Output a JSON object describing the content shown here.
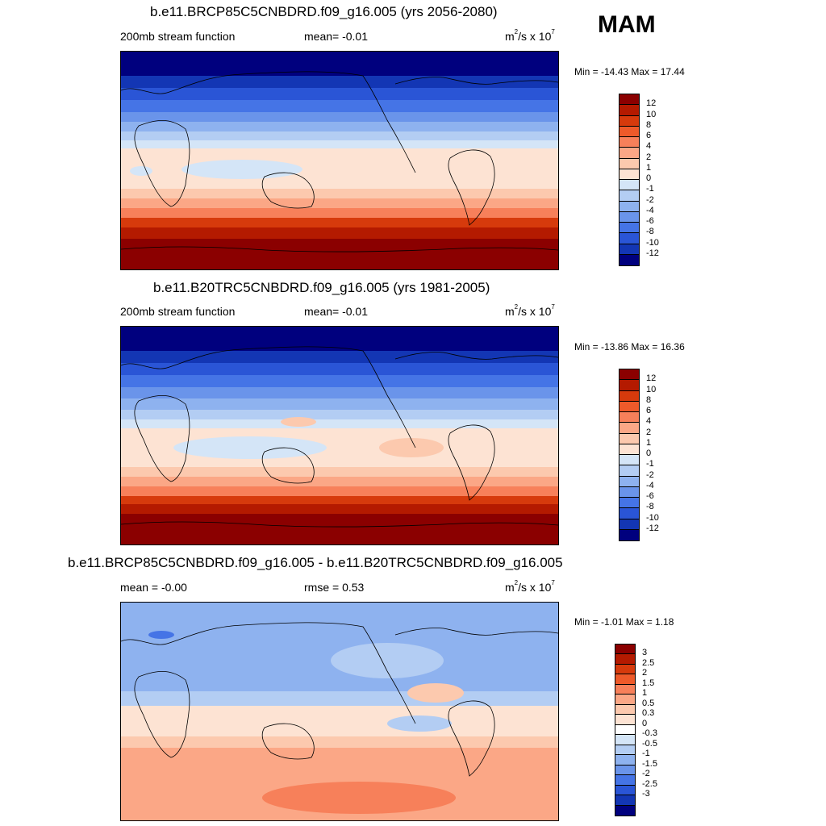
{
  "season": "MAM",
  "panels": [
    {
      "title": "b.e11.BRCP85C5CNBDRD.f09_g16.005 (yrs 2056-2080)",
      "left_label": "200mb stream function",
      "center_label": "mean=  -0.01",
      "units": "m²/s x 10⁷",
      "units_base": "m",
      "units_mid": "/s x 10",
      "units_exp2": "2",
      "units_exp7": "7",
      "minmax": "Min = -14.43 Max =  17.44",
      "colorbar_labels": [
        "12",
        "10",
        "8",
        "6",
        "4",
        "2",
        "1",
        "0",
        "-1",
        "-2",
        "-4",
        "-6",
        "-8",
        "-10",
        "-12"
      ],
      "colors": [
        "#8b0000",
        "#b41a00",
        "#d63a0c",
        "#ee5a2a",
        "#f7805a",
        "#fba786",
        "#fcc9ae",
        "#fde3d3",
        "#d4e5f7",
        "#b3cdf3",
        "#8eb2ef",
        "#6a94ea",
        "#4574e6",
        "#2a55d6",
        "#1336b4",
        "#00007e"
      ]
    },
    {
      "title": "b.e11.B20TRC5CNBDRD.f09_g16.005 (yrs 1981-2005)",
      "left_label": "200mb stream function",
      "center_label": "mean=  -0.01",
      "units": "m²/s x 10⁷",
      "units_base": "m",
      "units_mid": "/s x 10",
      "units_exp2": "2",
      "units_exp7": "7",
      "minmax": "Min = -13.86 Max =  16.36",
      "colorbar_labels": [
        "12",
        "10",
        "8",
        "6",
        "4",
        "2",
        "1",
        "0",
        "-1",
        "-2",
        "-4",
        "-6",
        "-8",
        "-10",
        "-12"
      ],
      "colors": [
        "#8b0000",
        "#b41a00",
        "#d63a0c",
        "#ee5a2a",
        "#f7805a",
        "#fba786",
        "#fcc9ae",
        "#fde3d3",
        "#d4e5f7",
        "#b3cdf3",
        "#8eb2ef",
        "#6a94ea",
        "#4574e6",
        "#2a55d6",
        "#1336b4",
        "#00007e"
      ]
    },
    {
      "title": "b.e11.BRCP85C5CNBDRD.f09_g16.005 - b.e11.B20TRC5CNBDRD.f09_g16.005",
      "left_label": "mean =  -0.00",
      "center_label": "rmse =   0.53",
      "units": "m²/s x 10⁷",
      "units_base": "m",
      "units_mid": "/s x 10",
      "units_exp2": "2",
      "units_exp7": "7",
      "minmax": "Min =  -1.01 Max =   1.18",
      "colorbar_labels": [
        "3",
        "2.5",
        "2",
        "1.5",
        "1",
        "0.5",
        "0.3",
        "0",
        "-0.3",
        "-0.5",
        "-1",
        "-1.5",
        "-2",
        "-2.5",
        "-3"
      ],
      "colors": [
        "#8b0000",
        "#b41a00",
        "#d63a0c",
        "#ee5a2a",
        "#f7805a",
        "#fba786",
        "#fcc9ae",
        "#fde3d3",
        "#ffffff",
        "#d4e5f7",
        "#b3cdf3",
        "#8eb2ef",
        "#6a94ea",
        "#4574e6",
        "#2a55d6",
        "#1336b4",
        "#00007e"
      ]
    }
  ]
}
